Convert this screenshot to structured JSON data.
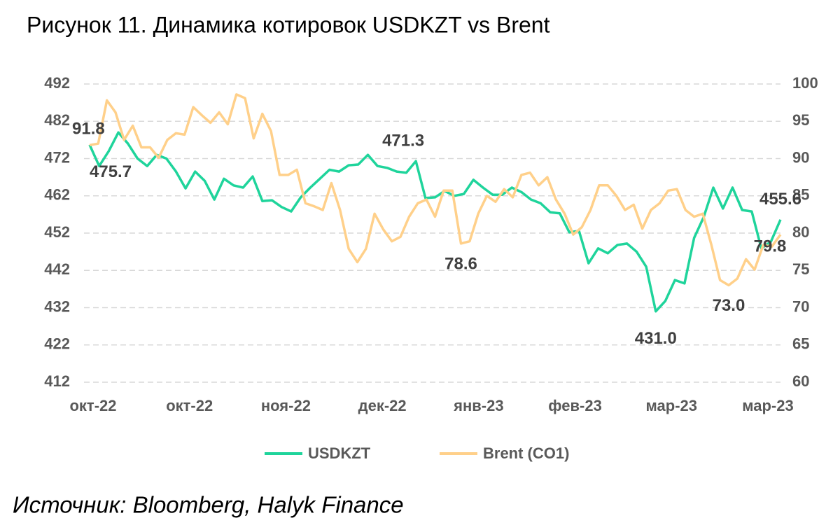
{
  "chart_data": {
    "type": "line",
    "title": "Рисунок 11. Динамика котировок USDKZT vs Brent",
    "source": "Источник: Bloomberg, Halyk Finance",
    "xtick_labels": [
      "окт-22",
      "окт-22",
      "ноя-22",
      "дек-22",
      "янв-23",
      "фев-23",
      "мар-23",
      "мар-23"
    ],
    "ylim": [
      412,
      492
    ],
    "yticks": [
      412,
      422,
      432,
      442,
      452,
      462,
      472,
      482,
      492
    ],
    "y2lim": [
      60,
      100
    ],
    "y2ticks": [
      60,
      65,
      70,
      75,
      80,
      85,
      90,
      95,
      100
    ],
    "grid": true,
    "legend": "bottom",
    "series": [
      {
        "name": "USDKZT",
        "color": "#1fd49b",
        "values": [
          475.7,
          470,
          474,
          479,
          476,
          472,
          470,
          473,
          472,
          468.5,
          464,
          468.5,
          466,
          461,
          466.6,
          464.8,
          464.2,
          467.2,
          460.6,
          460.8,
          459,
          457.8,
          461.6,
          464.2,
          466.6,
          469,
          468.5,
          470.2,
          470.4,
          473,
          470,
          469.5,
          468.5,
          468.2,
          471.3,
          461.4,
          461.6,
          463.3,
          462,
          462.5,
          466.3,
          464.2,
          462.3,
          462.3,
          464.2,
          463,
          461,
          460,
          457.6,
          457.3,
          452.2,
          452.6,
          443.9,
          447.9,
          446.6,
          448.8,
          449.2,
          447,
          443,
          431,
          433.8,
          439.4,
          438.5,
          450.7,
          456.3,
          464.2,
          458.6,
          464.2,
          458.2,
          457.8,
          447.9,
          449.7,
          455.6
        ],
        "value_labels": [
          "475.7",
          null,
          null,
          null,
          null,
          null,
          null,
          null,
          null,
          null,
          null,
          null,
          null,
          null,
          null,
          null,
          null,
          null,
          null,
          null,
          null,
          null,
          null,
          null,
          null,
          null,
          null,
          null,
          null,
          null,
          null,
          null,
          null,
          null,
          "471.3",
          null,
          null,
          null,
          null,
          null,
          null,
          null,
          null,
          null,
          null,
          null,
          null,
          null,
          null,
          null,
          null,
          null,
          null,
          null,
          null,
          null,
          null,
          null,
          null,
          "431.0",
          null,
          null,
          null,
          null,
          null,
          null,
          null,
          null,
          null,
          null,
          null,
          null,
          "455.6"
        ]
      },
      {
        "name": "Brent (CO1)",
        "color": "#ffd08a",
        "axis": "y2",
        "values": [
          91.8,
          92,
          97.8,
          96.2,
          92.5,
          94.4,
          91.5,
          91.5,
          90.1,
          92.5,
          93.4,
          93.2,
          96.9,
          95.8,
          94.8,
          96.2,
          94.6,
          98.6,
          98.1,
          92.7,
          96,
          93.7,
          87.8,
          87.8,
          88.5,
          84,
          83.6,
          83.1,
          86.7,
          83.1,
          77.9,
          76.1,
          77.9,
          82.6,
          80.5,
          78.9,
          79.5,
          82.2,
          84,
          84.5,
          82.2,
          85.7,
          85.7,
          78.6,
          78.9,
          82.6,
          85,
          84.2,
          85.9,
          84.8,
          87.8,
          88.1,
          86.4,
          87.5,
          84.5,
          82.6,
          79.8,
          80.8,
          83.1,
          86.4,
          86.4,
          85,
          83.1,
          83.8,
          80.6,
          83.1,
          84,
          85.7,
          85.9,
          83.1,
          82.2,
          82.6,
          78.4,
          73.7,
          73,
          73.9,
          76.5,
          75.1,
          78.4,
          78.2,
          79.8
        ],
        "value_labels": [
          "91.8",
          null,
          null,
          null,
          null,
          null,
          null,
          null,
          null,
          null,
          null,
          null,
          null,
          null,
          null,
          null,
          null,
          null,
          null,
          null,
          null,
          null,
          null,
          null,
          null,
          null,
          null,
          null,
          null,
          null,
          null,
          null,
          null,
          null,
          null,
          null,
          null,
          null,
          null,
          null,
          null,
          null,
          null,
          "78.6",
          null,
          null,
          null,
          null,
          null,
          null,
          null,
          null,
          null,
          null,
          null,
          null,
          null,
          null,
          null,
          null,
          null,
          null,
          null,
          null,
          null,
          null,
          null,
          null,
          null,
          null,
          null,
          null,
          null,
          null,
          "73.0",
          null,
          null,
          null,
          null,
          null,
          "79.8"
        ]
      }
    ]
  }
}
